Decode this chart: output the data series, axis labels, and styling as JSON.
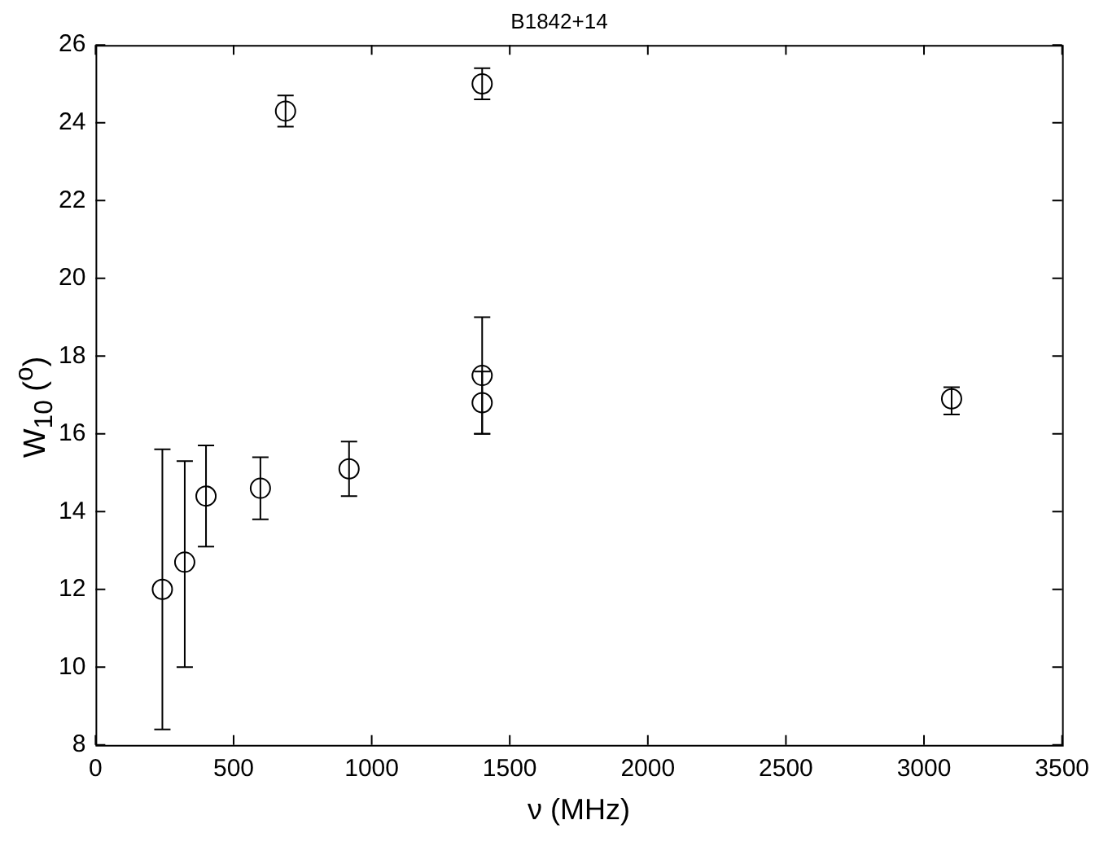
{
  "chart_data": {
    "type": "scatter",
    "title": "B1842+14",
    "xlabel": "ν (MHz)",
    "ylabel": "W$_{10}$ ($^{o}$)",
    "x": [
      242,
      323,
      400,
      597,
      918,
      1400,
      1400,
      688,
      1400,
      3100
    ],
    "values": [
      12.0,
      12.7,
      14.4,
      14.6,
      15.1,
      16.8,
      17.5,
      24.3,
      25.0,
      16.9
    ],
    "errors": [
      [
        8.4,
        15.6
      ],
      [
        10.0,
        15.3
      ],
      [
        13.1,
        15.7
      ],
      [
        13.8,
        15.4
      ],
      [
        14.4,
        15.8
      ],
      [
        16.0,
        17.6
      ],
      [
        16.0,
        19.0
      ],
      [
        23.9,
        24.7
      ],
      [
        24.6,
        25.4
      ],
      [
        16.5,
        17.2
      ]
    ],
    "color": "#000000",
    "marker": "circle",
    "xlim": [
      0,
      3500
    ],
    "xticks": [
      0,
      500,
      1000,
      1500,
      2000,
      2500,
      3000,
      3500
    ],
    "ylim": [
      8,
      26
    ],
    "yticks": [
      8,
      10,
      12,
      14,
      16,
      18,
      20,
      22,
      24,
      26
    ],
    "grid": false,
    "legend": false
  }
}
